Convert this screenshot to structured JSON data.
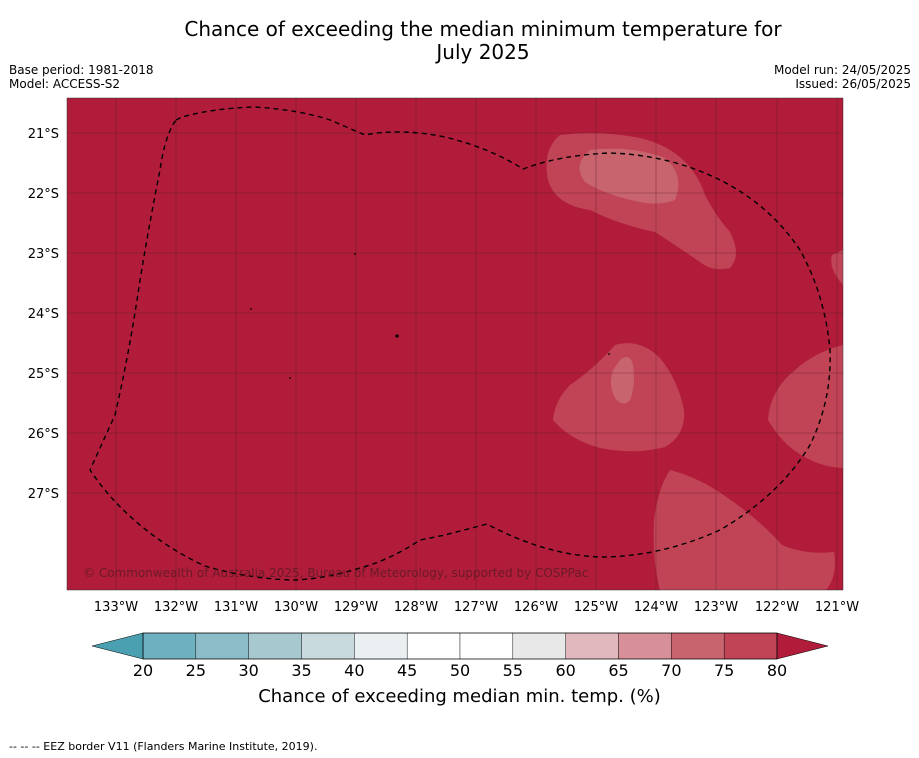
{
  "title_line1": "Chance of exceeding the median minimum temperature for",
  "title_line2": "July 2025",
  "meta_left": [
    "Base period: 1981-2018",
    "Model: ACCESS-S2"
  ],
  "meta_right": [
    "Model run: 24/05/2025",
    "Issued: 26/05/2025"
  ],
  "map": {
    "background_color": "#b01c39",
    "lat_ticks": [
      "21°S",
      "22°S",
      "23°S",
      "24°S",
      "25°S",
      "26°S",
      "27°S"
    ],
    "lon_ticks": [
      "133°W",
      "132°W",
      "131°W",
      "130°W",
      "129°W",
      "128°W",
      "127°W",
      "126°W",
      "125°W",
      "124°W",
      "123°W",
      "122°W",
      "121°W"
    ],
    "copyright": "© Commonwealth of Australia 2025, Bureau of Meteorology, supported by COSPPac"
  },
  "colorbar": {
    "ticks": [
      "20",
      "25",
      "30",
      "35",
      "40",
      "45",
      "50",
      "55",
      "60",
      "65",
      "70",
      "75",
      "80"
    ],
    "colors": [
      "#6eb0c0",
      "#8cbcc8",
      "#a8c8d0",
      "#c8dade",
      "#eaf0f2",
      "#ffffff",
      "#ffffff",
      "#e8e8e8",
      "#e0b8be",
      "#d89098",
      "#c8646e",
      "#c04456"
    ],
    "under_color": "#4aa0b0",
    "over_color": "#b01c39",
    "label": "Chance of exceeding median min. temp. (%)"
  },
  "footnote": "--  --  -- EEZ border V11 (Flanders Marine Institute, 2019)."
}
